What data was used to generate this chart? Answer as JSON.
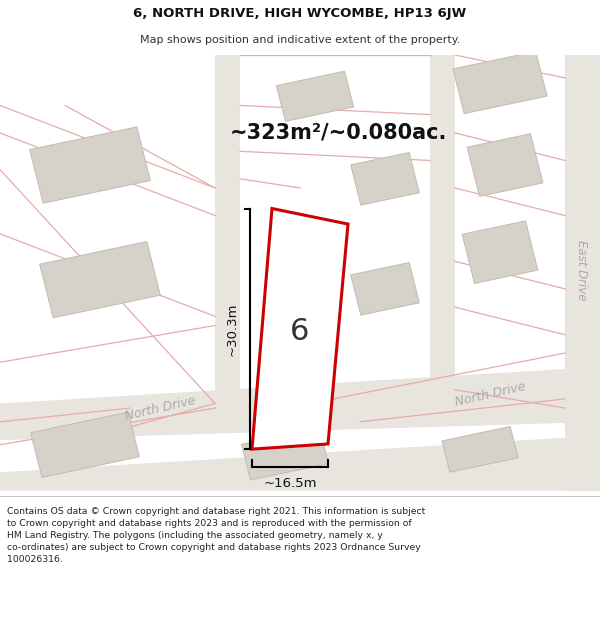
{
  "title_line1": "6, NORTH DRIVE, HIGH WYCOMBE, HP13 6JW",
  "title_line2": "Map shows position and indicative extent of the property.",
  "area_text": "~323m²/~0.080ac.",
  "label_number": "6",
  "dim_height": "~30.3m",
  "dim_width": "~16.5m",
  "street_label_left": "North Drive",
  "street_label_right": "North Drive",
  "street_label_east": "East Drive",
  "footer_text": "Contains OS data © Crown copyright and database right 2021. This information is subject to Crown copyright and database rights 2023 and is reproduced with the permission of HM Land Registry. The polygons (including the associated geometry, namely x, y co-ordinates) are subject to Crown copyright and database rights 2023 Ordnance Survey 100026316.",
  "map_bg": "#f7f5f2",
  "road_color": "#e8e4de",
  "building_fill": "#d6d2ca",
  "building_edge": "#c0bbb3",
  "red_outline": "#cc0000",
  "pink_line": "#e8aaaa",
  "white": "#ffffff"
}
